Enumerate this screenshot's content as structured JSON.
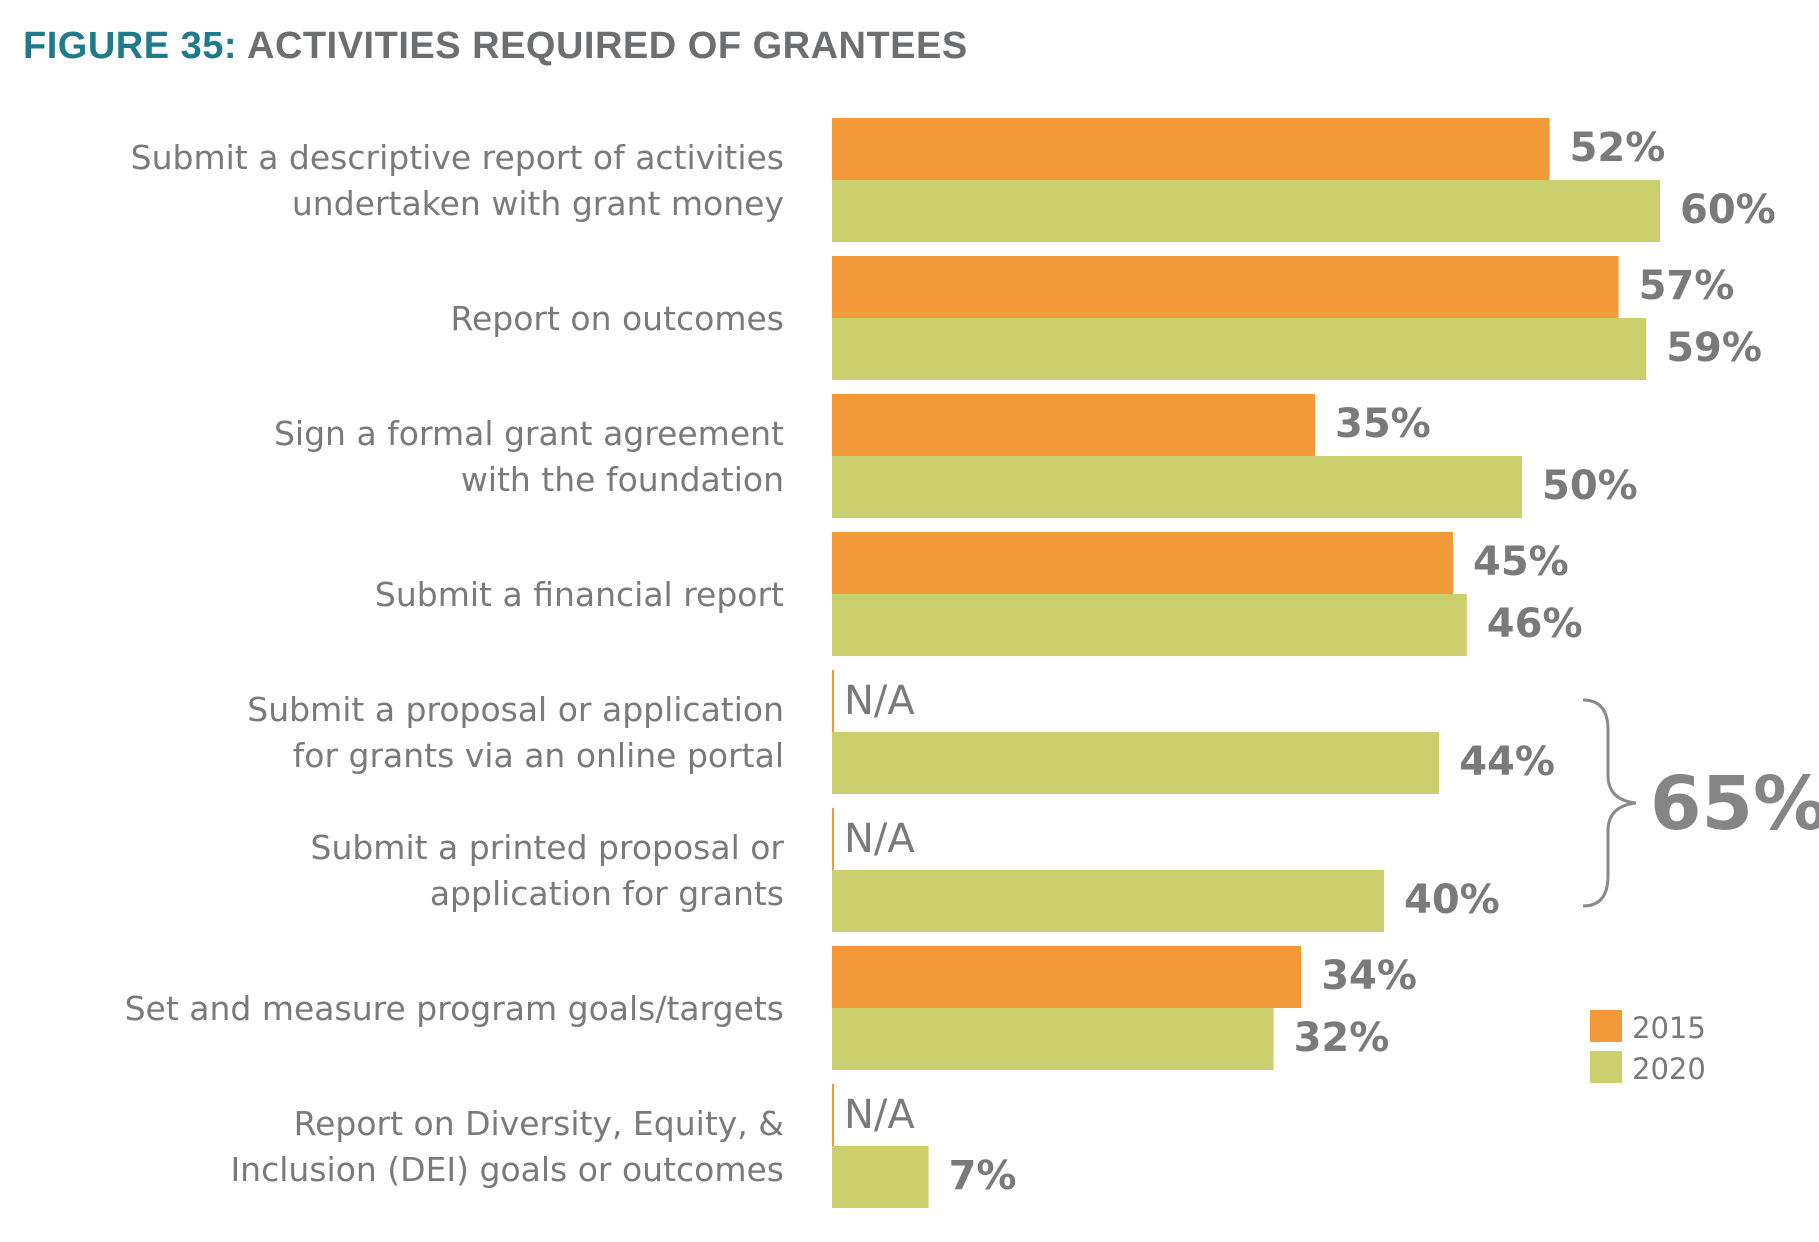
{
  "title": {
    "prefix": "FIGURE 35:",
    "text": "ACTIVITIES REQUIRED OF GRANTEES"
  },
  "colors": {
    "title_prefix": "#1f7a8c",
    "title_text": "#6d6e70",
    "series_2015": "#f2993a",
    "series_2020": "#cccf6e",
    "text": "#7a7a7a"
  },
  "chart_data": {
    "type": "bar",
    "orientation": "horizontal",
    "categories": [
      [
        "Submit a descriptive report of activities",
        "undertaken with grant money"
      ],
      [
        "Report on outcomes"
      ],
      [
        "Sign a formal grant agreement",
        "with the foundation"
      ],
      [
        "Submit a financial report"
      ],
      [
        "Submit a proposal or application",
        "for grants via an online portal"
      ],
      [
        "Submit a printed proposal or",
        "application for grants"
      ],
      [
        "Set and measure program goals/targets"
      ],
      [
        "Report on Diversity, Equity, &",
        "Inclusion (DEI) goals or outcomes"
      ]
    ],
    "series": [
      {
        "name": "2015",
        "values": [
          52,
          57,
          35,
          45,
          null,
          null,
          34,
          null
        ],
        "labels": [
          "52%",
          "57%",
          "35%",
          "45%",
          "N/A",
          "N/A",
          "34%",
          "N/A"
        ]
      },
      {
        "name": "2020",
        "values": [
          60,
          59,
          50,
          46,
          44,
          40,
          32,
          7
        ],
        "labels": [
          "60%",
          "59%",
          "50%",
          "46%",
          "44%",
          "40%",
          "32%",
          "7%"
        ]
      }
    ],
    "xlim": [
      0,
      60
    ],
    "grid": false,
    "legend": "right",
    "annotation": {
      "text": "65%",
      "brackets_categories": [
        4,
        5
      ]
    }
  }
}
